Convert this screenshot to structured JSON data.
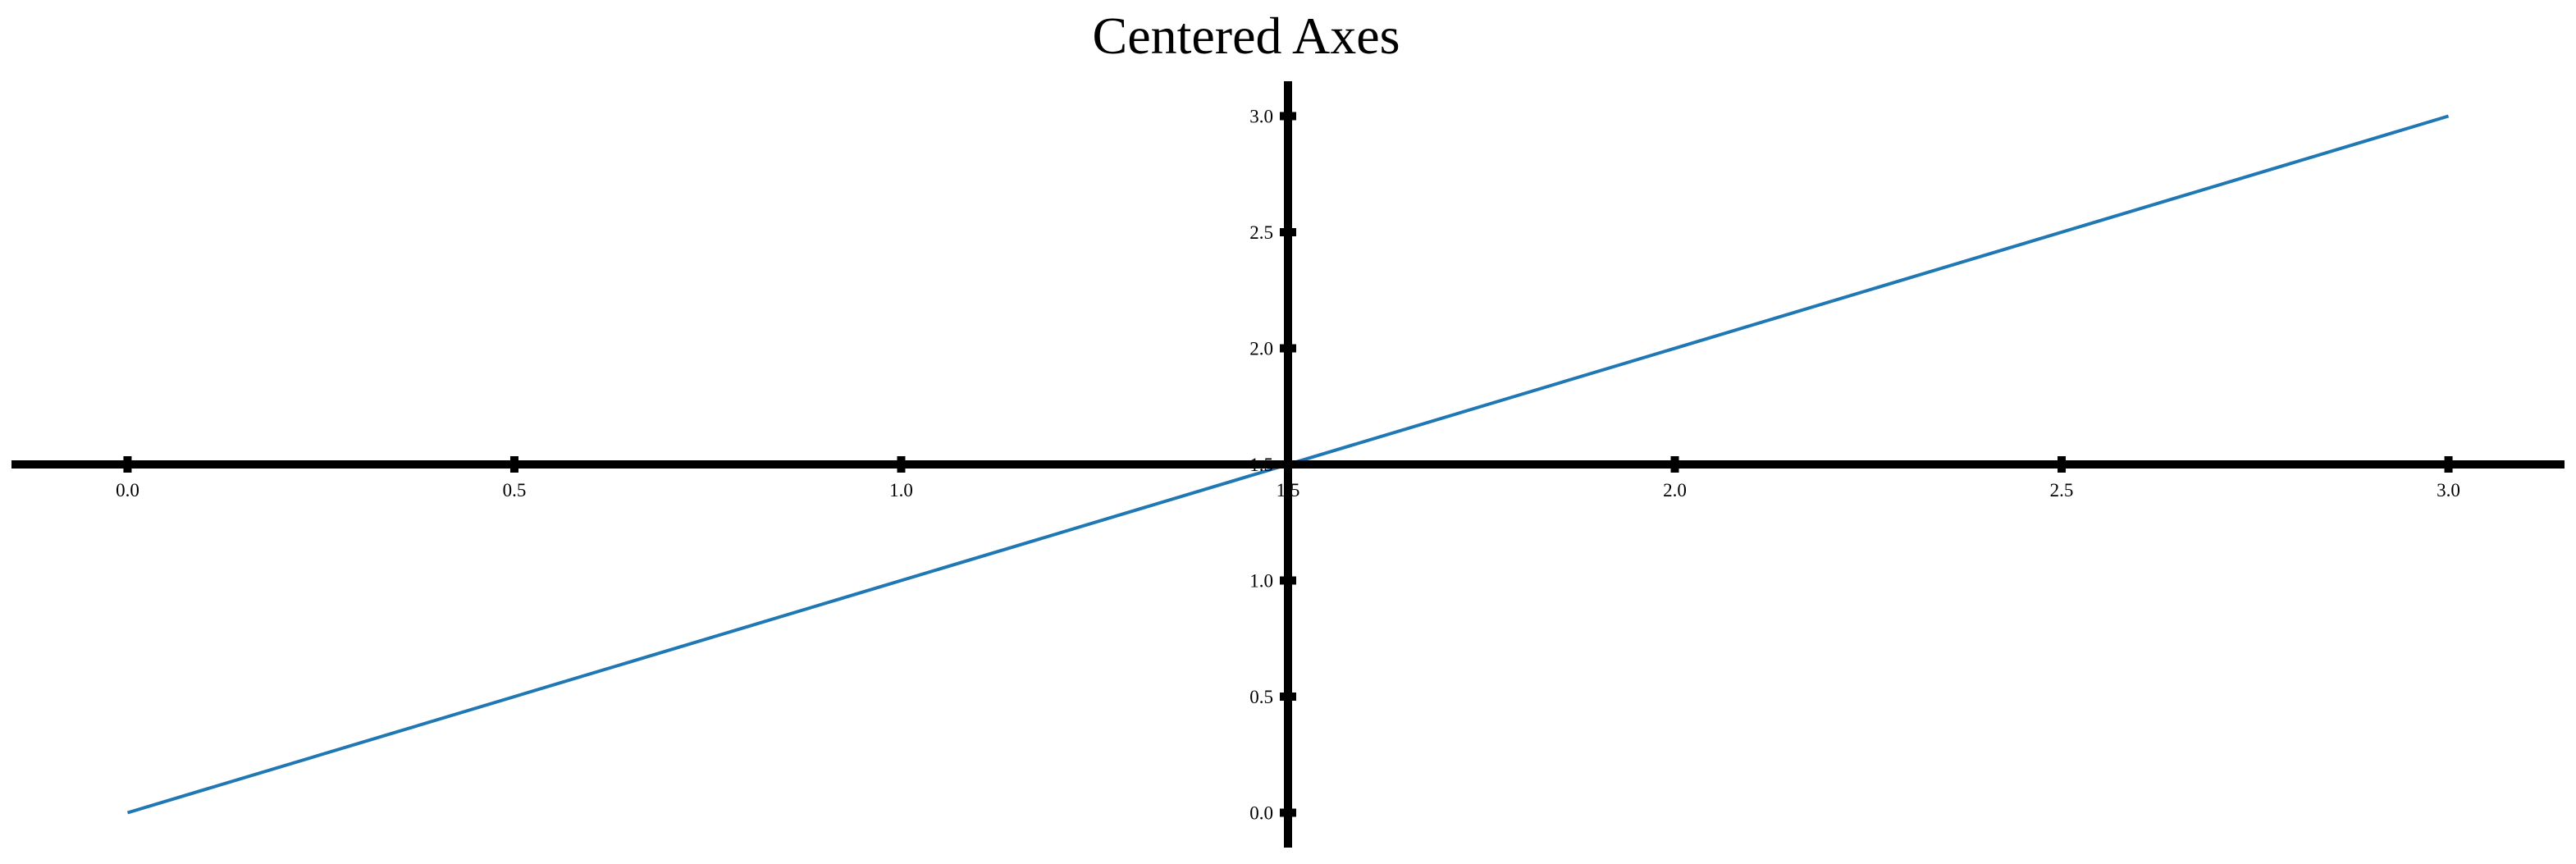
{
  "chart_data": {
    "type": "line",
    "title": "Centered Axes",
    "xlabel": "",
    "ylabel": "",
    "xlim": [
      -0.15,
      3.15
    ],
    "ylim": [
      -0.15,
      3.15
    ],
    "x_ticks": [
      0.0,
      0.5,
      1.0,
      1.5,
      2.0,
      2.5,
      3.0
    ],
    "y_ticks": [
      0.0,
      0.5,
      1.0,
      1.5,
      2.0,
      2.5,
      3.0
    ],
    "x_tick_labels": [
      "0.0",
      "0.5",
      "1.0",
      "1.5",
      "2.0",
      "2.5",
      "3.0"
    ],
    "y_tick_labels": [
      "0.0",
      "0.5",
      "1.0",
      "1.5",
      "2.0",
      "2.5",
      "3.0"
    ],
    "spines_centered_at": {
      "x": 1.5,
      "y": 1.5
    },
    "grid": false,
    "legend": null,
    "series": [
      {
        "x": [
          0,
          3
        ],
        "y": [
          0,
          3
        ],
        "color": "#1f77b4"
      }
    ],
    "colors": {
      "axis": "#000000",
      "line": "#1f77b4"
    }
  }
}
